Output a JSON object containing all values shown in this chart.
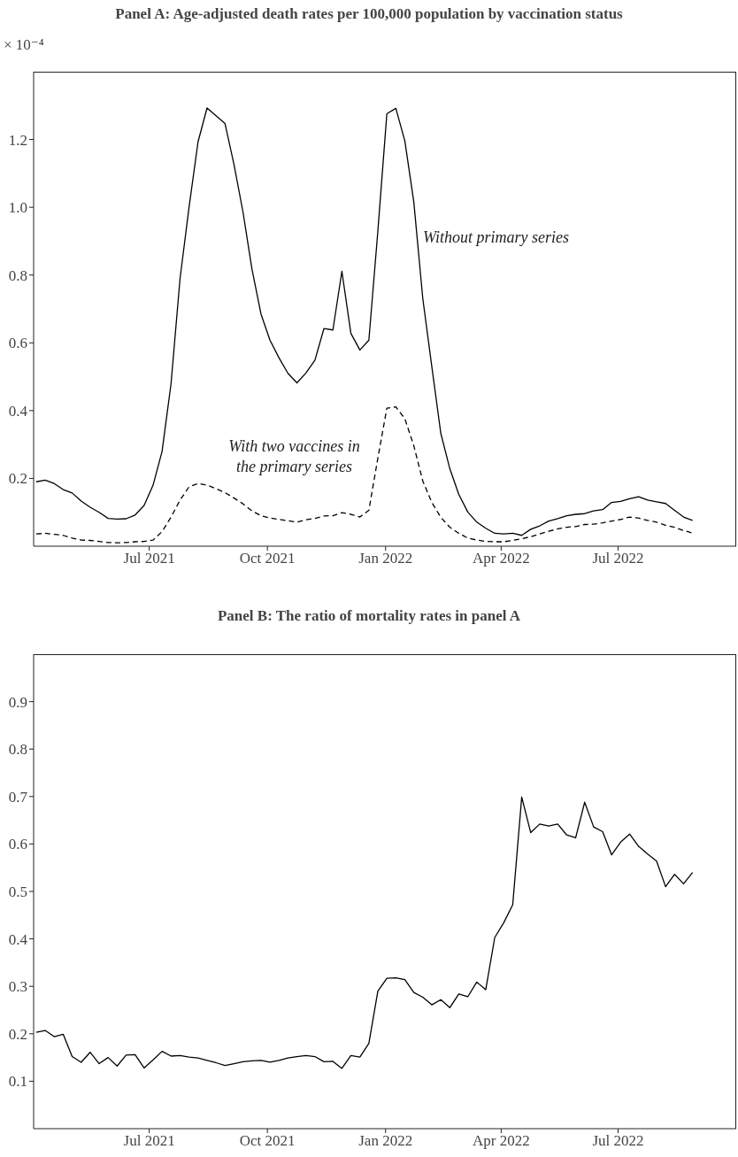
{
  "chart_data": [
    {
      "type": "line",
      "title": "Panel A: Age-adjusted death rates per 100,000 population by vaccination status",
      "ylabel": "× 10⁻⁴",
      "x": [
        "2021-04-04",
        "2021-04-11",
        "2021-04-18",
        "2021-04-25",
        "2021-05-02",
        "2021-05-09",
        "2021-05-16",
        "2021-05-23",
        "2021-05-30",
        "2021-06-06",
        "2021-06-13",
        "2021-06-20",
        "2021-06-27",
        "2021-07-04",
        "2021-07-11",
        "2021-07-18",
        "2021-07-25",
        "2021-08-01",
        "2021-08-08",
        "2021-08-15",
        "2021-08-22",
        "2021-08-29",
        "2021-09-05",
        "2021-09-12",
        "2021-09-19",
        "2021-09-26",
        "2021-10-03",
        "2021-10-10",
        "2021-10-17",
        "2021-10-24",
        "2021-10-31",
        "2021-11-07",
        "2021-11-14",
        "2021-11-21",
        "2021-11-28",
        "2021-12-05",
        "2021-12-12",
        "2021-12-19",
        "2021-12-26",
        "2022-01-02",
        "2022-01-09",
        "2022-01-16",
        "2022-01-23",
        "2022-01-30",
        "2022-02-06",
        "2022-02-13",
        "2022-02-20",
        "2022-02-27",
        "2022-03-06",
        "2022-03-13",
        "2022-03-20",
        "2022-03-27",
        "2022-04-03",
        "2022-04-10",
        "2022-04-17",
        "2022-04-24",
        "2022-05-01",
        "2022-05-08",
        "2022-05-15",
        "2022-05-22",
        "2022-05-29",
        "2022-06-05",
        "2022-06-12",
        "2022-06-19",
        "2022-06-26",
        "2022-07-03",
        "2022-07-10",
        "2022-07-17",
        "2022-07-24",
        "2022-07-31",
        "2022-08-07",
        "2022-08-14",
        "2022-08-21",
        "2022-08-28"
      ],
      "xlim": [
        "2021-04-02",
        "2022-10-01"
      ],
      "xticks": [
        {
          "value": "2021-07-01",
          "label": "Jul 2021"
        },
        {
          "value": "2021-10-01",
          "label": "Oct 2021"
        },
        {
          "value": "2022-01-01",
          "label": "Jan 2022"
        },
        {
          "value": "2022-04-01",
          "label": "Apr 2022"
        },
        {
          "value": "2022-07-01",
          "label": "Jul 2022"
        }
      ],
      "ylim": [
        0,
        1.4
      ],
      "yticks": [
        0.2,
        0.4,
        0.6,
        0.8,
        {
          "value": 1,
          "label": "1.0"
        },
        1.2
      ],
      "series": [
        {
          "name": "Without primary series",
          "color": "#000000",
          "line_style": "solid",
          "values": [
            0.19,
            0.195,
            0.185,
            0.167,
            0.157,
            0.133,
            0.115,
            0.1,
            0.082,
            0.08,
            0.081,
            0.092,
            0.12,
            0.18,
            0.28,
            0.48,
            0.79,
            1.0,
            1.193,
            1.293,
            1.27,
            1.247,
            1.126,
            0.986,
            0.817,
            0.685,
            0.608,
            0.556,
            0.51,
            0.482,
            0.511,
            0.549,
            0.642,
            0.638,
            0.811,
            0.628,
            0.579,
            0.608,
            0.93,
            1.276,
            1.292,
            1.196,
            1.015,
            0.73,
            0.53,
            0.333,
            0.229,
            0.153,
            0.101,
            0.071,
            0.053,
            0.038,
            0.036,
            0.038,
            0.032,
            0.05,
            0.06,
            0.074,
            0.081,
            0.09,
            0.094,
            0.096,
            0.104,
            0.108,
            0.129,
            0.132,
            0.14,
            0.146,
            0.136,
            0.131,
            0.126,
            0.106,
            0.086,
            0.076
          ]
        },
        {
          "name": "With two vaccines in the primary series",
          "color": "#000000",
          "line_style": "dashed",
          "values": [
            0.036,
            0.038,
            0.035,
            0.032,
            0.024,
            0.018,
            0.017,
            0.014,
            0.011,
            0.01,
            0.011,
            0.013,
            0.014,
            0.018,
            0.043,
            0.086,
            0.136,
            0.175,
            0.185,
            0.18,
            0.17,
            0.158,
            0.142,
            0.125,
            0.104,
            0.09,
            0.083,
            0.079,
            0.075,
            0.071,
            0.078,
            0.082,
            0.089,
            0.09,
            0.099,
            0.094,
            0.086,
            0.106,
            0.26,
            0.407,
            0.411,
            0.376,
            0.296,
            0.192,
            0.129,
            0.085,
            0.056,
            0.038,
            0.024,
            0.018,
            0.014,
            0.013,
            0.013,
            0.017,
            0.022,
            0.028,
            0.036,
            0.044,
            0.051,
            0.056,
            0.058,
            0.064,
            0.065,
            0.069,
            0.074,
            0.079,
            0.086,
            0.083,
            0.076,
            0.071,
            0.062,
            0.056,
            0.046,
            0.039
          ]
        }
      ]
    },
    {
      "type": "line",
      "title": "Panel B: The ratio of mortality rates in panel A",
      "x": [
        "2021-04-04",
        "2021-04-11",
        "2021-04-18",
        "2021-04-25",
        "2021-05-02",
        "2021-05-09",
        "2021-05-16",
        "2021-05-23",
        "2021-05-30",
        "2021-06-06",
        "2021-06-13",
        "2021-06-20",
        "2021-06-27",
        "2021-07-04",
        "2021-07-11",
        "2021-07-18",
        "2021-07-25",
        "2021-08-01",
        "2021-08-08",
        "2021-08-15",
        "2021-08-22",
        "2021-08-29",
        "2021-09-05",
        "2021-09-12",
        "2021-09-19",
        "2021-09-26",
        "2021-10-03",
        "2021-10-10",
        "2021-10-17",
        "2021-10-24",
        "2021-10-31",
        "2021-11-07",
        "2021-11-14",
        "2021-11-21",
        "2021-11-28",
        "2021-12-05",
        "2021-12-12",
        "2021-12-19",
        "2021-12-26",
        "2022-01-02",
        "2022-01-09",
        "2022-01-16",
        "2022-01-23",
        "2022-01-30",
        "2022-02-06",
        "2022-02-13",
        "2022-02-20",
        "2022-02-27",
        "2022-03-06",
        "2022-03-13",
        "2022-03-20",
        "2022-03-27",
        "2022-04-03",
        "2022-04-10",
        "2022-04-17",
        "2022-04-24",
        "2022-05-01",
        "2022-05-08",
        "2022-05-15",
        "2022-05-22",
        "2022-05-29",
        "2022-06-05",
        "2022-06-12",
        "2022-06-19",
        "2022-06-26",
        "2022-07-03",
        "2022-07-10",
        "2022-07-17",
        "2022-07-24",
        "2022-07-31",
        "2022-08-07",
        "2022-08-14",
        "2022-08-21",
        "2022-08-28"
      ],
      "xlim": [
        "2021-04-02",
        "2022-10-01"
      ],
      "xticks": [
        {
          "value": "2021-07-01",
          "label": "Jul 2021"
        },
        {
          "value": "2021-10-01",
          "label": "Oct 2021"
        },
        {
          "value": "2022-01-01",
          "label": "Jan 2022"
        },
        {
          "value": "2022-04-01",
          "label": "Apr 2022"
        },
        {
          "value": "2022-07-01",
          "label": "Jul 2022"
        }
      ],
      "ylim": [
        0,
        1
      ],
      "yticks": [
        0.1,
        0.2,
        0.3,
        0.4,
        0.5,
        0.6,
        0.7,
        0.8,
        0.9
      ],
      "series": [
        {
          "color": "#000000",
          "line_style": "solid",
          "values": [
            0.203,
            0.207,
            0.194,
            0.199,
            0.152,
            0.14,
            0.161,
            0.137,
            0.15,
            0.132,
            0.155,
            0.156,
            0.128,
            0.145,
            0.163,
            0.153,
            0.154,
            0.151,
            0.149,
            0.144,
            0.139,
            0.133,
            0.137,
            0.141,
            0.143,
            0.144,
            0.14,
            0.144,
            0.149,
            0.152,
            0.154,
            0.152,
            0.141,
            0.142,
            0.127,
            0.154,
            0.151,
            0.18,
            0.29,
            0.317,
            0.318,
            0.314,
            0.287,
            0.277,
            0.261,
            0.272,
            0.255,
            0.284,
            0.278,
            0.309,
            0.293,
            0.403,
            0.434,
            0.472,
            0.699,
            0.624,
            0.642,
            0.638,
            0.642,
            0.619,
            0.613,
            0.688,
            0.636,
            0.626,
            0.577,
            0.604,
            0.621,
            0.595,
            0.579,
            0.564,
            0.51,
            0.536,
            0.516,
            0.54
          ]
        }
      ]
    }
  ]
}
